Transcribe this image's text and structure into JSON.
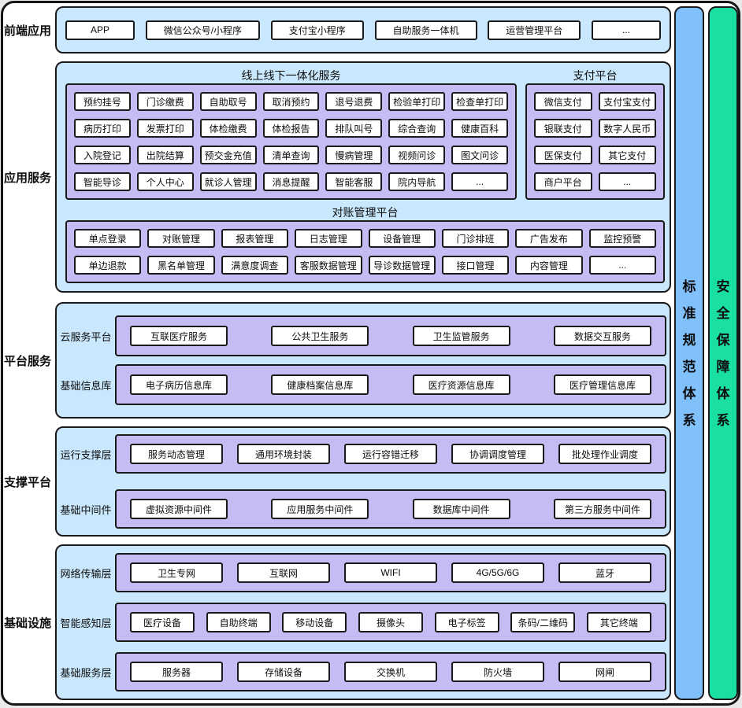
{
  "colors": {
    "section_bg": "#c9e8fd",
    "container_bg": "#c6bbf2",
    "box_bg": "#ffffff",
    "border": "#1a1a1a",
    "standards_bar": "#80c1fc",
    "security_bar": "#19dfa3"
  },
  "sections": {
    "frontend": {
      "label": "前端应用",
      "items": [
        "APP",
        "微信公众号/小程序",
        "支付宝小程序",
        "自助服务一体机",
        "运营管理平台",
        "..."
      ]
    },
    "app_services": {
      "label": "应用服务",
      "integrated": {
        "title": "线上线下一体化服务",
        "rows": [
          [
            "预约挂号",
            "门诊缴费",
            "自助取号",
            "取消预约",
            "退号退费",
            "检验单打印",
            "检查单打印"
          ],
          [
            "病历打印",
            "发票打印",
            "体检缴费",
            "体检报告",
            "排队叫号",
            "综合查询",
            "健康百科"
          ],
          [
            "入院登记",
            "出院结算",
            "预交金充值",
            "清单查询",
            "慢病管理",
            "视频问诊",
            "图文问诊"
          ],
          [
            "智能导诊",
            "个人中心",
            "就诊人管理",
            "消息提醒",
            "智能客服",
            "院内导航",
            "..."
          ]
        ]
      },
      "payment": {
        "title": "支付平台",
        "rows": [
          [
            "微信支付",
            "支付宝支付"
          ],
          [
            "银联支付",
            "数字人民币"
          ],
          [
            "医保支付",
            "其它支付"
          ],
          [
            "商户平台",
            "..."
          ]
        ]
      },
      "reconciliation": {
        "title": "对账管理平台",
        "rows": [
          [
            "单点登录",
            "对账管理",
            "报表管理",
            "日志管理",
            "设备管理",
            "门诊排班",
            "广告发布",
            "监控预警"
          ],
          [
            "单边退款",
            "黑名单管理",
            "满意度调查",
            "客服数据管理",
            "导诊数据管理",
            "接口管理",
            "内容管理",
            "..."
          ]
        ]
      }
    },
    "platform": {
      "label": "平台服务",
      "rows": [
        {
          "label": "云服务平台",
          "items": [
            "互联医疗服务",
            "公共卫生服务",
            "卫生监管服务",
            "数据交互服务"
          ]
        },
        {
          "label": "基础信息库",
          "items": [
            "电子病历信息库",
            "健康档案信息库",
            "医疗资源信息库",
            "医疗管理信息库"
          ]
        }
      ]
    },
    "support": {
      "label": "支撑平台",
      "rows": [
        {
          "label": "运行支撑层",
          "items": [
            "服务动态管理",
            "通用环境封装",
            "运行容错迁移",
            "协调调度管理",
            "批处理作业调度"
          ]
        },
        {
          "label": "基础中间件",
          "items": [
            "虚拟资源中间件",
            "应用服务中间件",
            "数据库中间件",
            "第三方服务中间件"
          ]
        }
      ]
    },
    "infrastructure": {
      "label": "基础设施",
      "rows": [
        {
          "label": "网络传输层",
          "items": [
            "卫生专网",
            "互联网",
            "WIFI",
            "4G/5G/6G",
            "蓝牙"
          ]
        },
        {
          "label": "智能感知层",
          "items": [
            "医疗设备",
            "自助终端",
            "移动设备",
            "摄像头",
            "电子标签",
            "条码/二维码",
            "其它终端"
          ]
        },
        {
          "label": "基础服务层",
          "items": [
            "服务器",
            "存储设备",
            "交换机",
            "防火墙",
            "网闸"
          ]
        }
      ]
    }
  },
  "side_systems": [
    {
      "label": "标准规范体系",
      "color": "#80c1fc"
    },
    {
      "label": "安全保障体系",
      "color": "#19dfa3"
    }
  ]
}
